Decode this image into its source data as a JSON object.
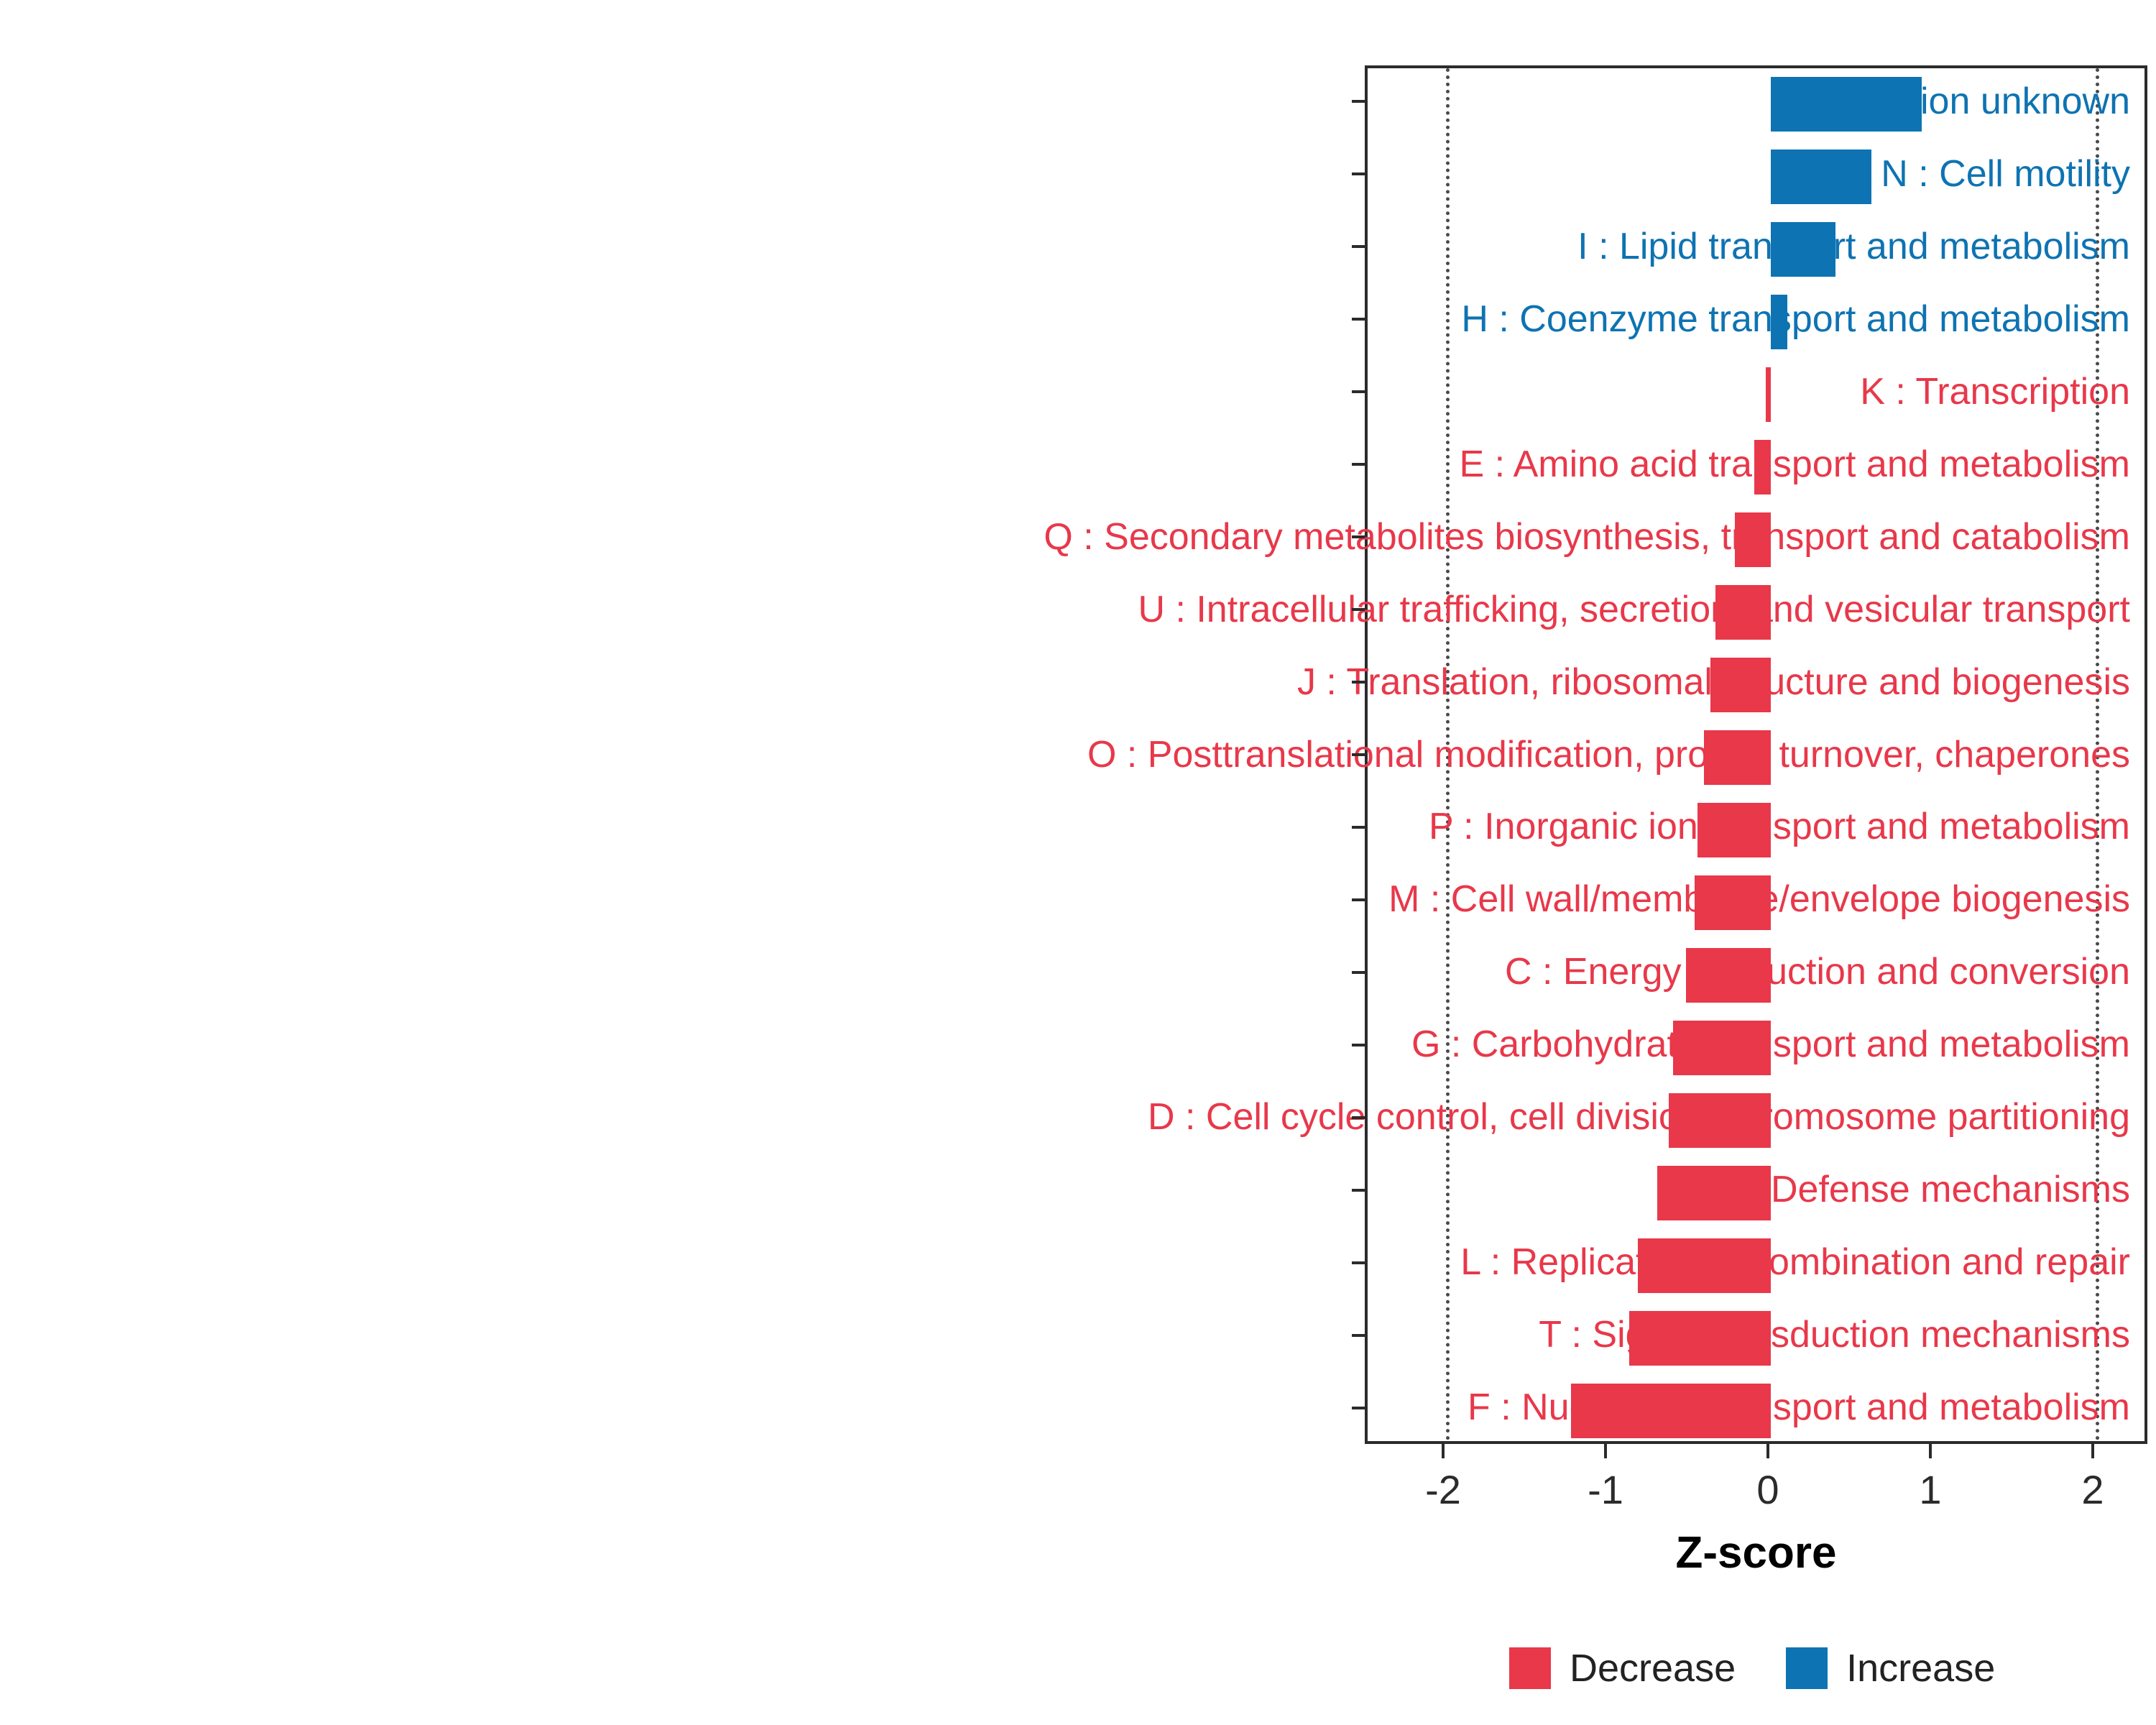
{
  "chart_data": {
    "type": "bar",
    "orientation": "horizontal",
    "title": "",
    "xlabel": "Z-score",
    "ylabel": "",
    "xlim": [
      -2.5,
      2.35
    ],
    "x_ticks": [
      -2,
      -1,
      0,
      1,
      2
    ],
    "gridlines_at": [
      -2,
      2
    ],
    "grid": "dotted-verticals-at--2-and-2-only",
    "legend_position": "bottom-right",
    "colors": {
      "increase": "#0E73B2",
      "decrease": "#E8384A"
    },
    "categories": [
      "S : Function unknown",
      "N : Cell motility",
      "I : Lipid transport and metabolism",
      "H : Coenzyme transport and metabolism",
      "K : Transcription",
      "E : Amino acid transport and metabolism",
      "Q : Secondary metabolites biosynthesis, transport and catabolism",
      "U : Intracellular trafficking, secretion, and vesicular transport",
      "J : Translation, ribosomal structure and biogenesis",
      "O : Posttranslational modification, protein turnover, chaperones",
      "P : Inorganic ion transport and metabolism",
      "M : Cell wall/membrane/envelope biogenesis",
      "C : Energy production and conversion",
      "G : Carbohydrate transport and metabolism",
      "D : Cell cycle control, cell division, chromosome partitioning",
      "V : Defense mechanisms",
      "L : Replication, recombination and repair",
      "T : Signal transduction mechanisms",
      "F : Nucleotide transport and metabolism"
    ],
    "values": [
      0.93,
      0.62,
      0.4,
      0.1,
      -0.03,
      -0.1,
      -0.22,
      -0.34,
      -0.37,
      -0.41,
      -0.45,
      -0.47,
      -0.52,
      -0.6,
      -0.63,
      -0.7,
      -0.82,
      -0.87,
      -1.23
    ],
    "directions": [
      "increase",
      "increase",
      "increase",
      "increase",
      "decrease",
      "decrease",
      "decrease",
      "decrease",
      "decrease",
      "decrease",
      "decrease",
      "decrease",
      "decrease",
      "decrease",
      "decrease",
      "decrease",
      "decrease",
      "decrease",
      "decrease"
    ],
    "legend": [
      {
        "label": "Decrease",
        "color": "#E8384A"
      },
      {
        "label": "Increase",
        "color": "#0E73B2"
      }
    ]
  }
}
